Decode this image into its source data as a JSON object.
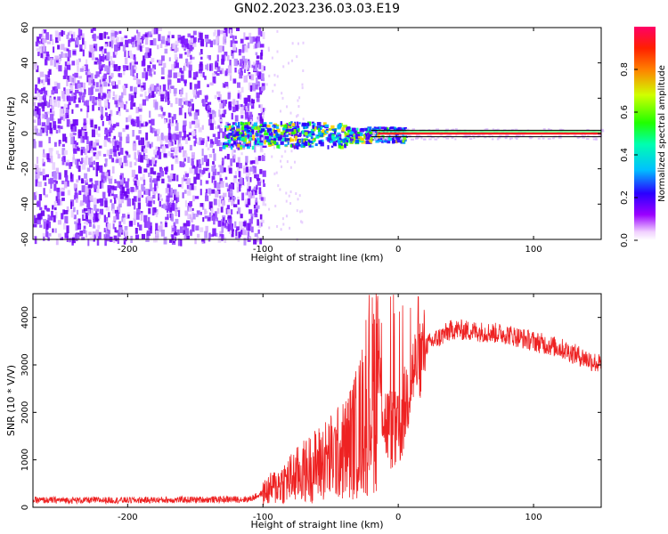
{
  "title": "GN02.2023.236.03.03.E19",
  "chart_data": [
    {
      "type": "heatmap",
      "xlabel": "Height of straight line (km)",
      "ylabel": "Frequency (Hz)",
      "xlim": [
        -270,
        150
      ],
      "ylim": [
        -60,
        60
      ],
      "xticks": [
        -200,
        -100,
        0,
        100
      ],
      "yticks": [
        -60,
        -40,
        -20,
        0,
        20,
        40,
        60
      ],
      "colorbar": {
        "label": "Normalized spectral amplitude",
        "range": [
          0,
          1
        ],
        "ticks": [
          0.0,
          0.2,
          0.4,
          0.6,
          0.8
        ],
        "colormap": "hsv-reversed (magenta-blue-cyan-green-yellow-red)"
      },
      "features": {
        "noise_region_x": [
          -270,
          -100
        ],
        "signal_onset_x": -130,
        "signal_center_frequency": 0,
        "stable_tone_start_x": -15,
        "horizontal_line_frequency": [
          1,
          -1
        ]
      },
      "grid": false
    },
    {
      "type": "line",
      "xlabel": "Height of straight line (km)",
      "ylabel": "SNR (10 * V/V)",
      "xlim": [
        -270,
        150
      ],
      "ylim": [
        0,
        4500
      ],
      "xticks": [
        -200,
        -100,
        0,
        100
      ],
      "yticks": [
        0,
        1000,
        2000,
        3000,
        4000
      ],
      "series": [
        {
          "color": "#ee2222",
          "x": [
            -270,
            -200,
            -110,
            -100,
            -80,
            -60,
            -40,
            -30,
            -20,
            -15,
            -10,
            0,
            10,
            20,
            40,
            60,
            80,
            100,
            120,
            150
          ],
          "values": [
            150,
            150,
            170,
            300,
            600,
            900,
            1200,
            1600,
            2300,
            3000,
            1800,
            1500,
            2800,
            3400,
            3750,
            3700,
            3650,
            3500,
            3350,
            3000
          ]
        }
      ],
      "grid": false
    }
  ],
  "colors": {
    "line": "#ee2222",
    "axis": "#000000"
  }
}
